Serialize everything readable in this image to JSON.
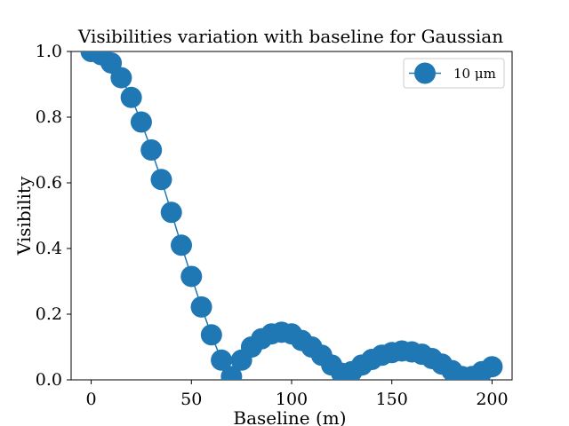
{
  "chart_data": {
    "type": "line",
    "title": "Visibilities variation with baseline for Gaussian",
    "xlabel": "Baseline (m)",
    "ylabel": "Visibility",
    "xlim": [
      -10,
      210
    ],
    "ylim": [
      0,
      1.0
    ],
    "x_ticks": [
      0,
      50,
      100,
      150,
      200
    ],
    "y_ticks": [
      0.0,
      0.2,
      0.4,
      0.6,
      0.8,
      1.0
    ],
    "x_tick_labels": [
      "0",
      "50",
      "100",
      "150",
      "200"
    ],
    "y_tick_labels": [
      "0.0",
      "0.2",
      "0.4",
      "0.6",
      "0.8",
      "1.0"
    ],
    "grid": false,
    "legend_position": "top-right",
    "series": [
      {
        "name": "10 μm",
        "color": "#1f77b4",
        "marker": "circle",
        "x": [
          0,
          5,
          10,
          15,
          20,
          25,
          30,
          35,
          40,
          45,
          50,
          55,
          60,
          65,
          70,
          75,
          80,
          85,
          90,
          95,
          100,
          105,
          110,
          115,
          120,
          125,
          130,
          135,
          140,
          145,
          150,
          155,
          160,
          165,
          170,
          175,
          180,
          185,
          190,
          195,
          200
        ],
        "y": [
          1.0,
          0.99,
          0.965,
          0.92,
          0.86,
          0.785,
          0.7,
          0.61,
          0.51,
          0.41,
          0.315,
          0.222,
          0.137,
          0.06,
          0.01,
          0.06,
          0.1,
          0.125,
          0.14,
          0.145,
          0.14,
          0.12,
          0.1,
          0.075,
          0.045,
          0.02,
          0.025,
          0.045,
          0.062,
          0.075,
          0.083,
          0.088,
          0.085,
          0.078,
          0.065,
          0.048,
          0.028,
          0.01,
          0.01,
          0.025,
          0.04
        ]
      }
    ]
  }
}
